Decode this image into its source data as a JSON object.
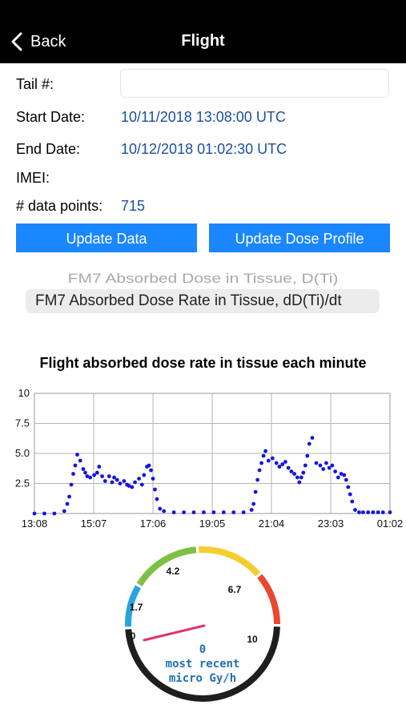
{
  "nav": {
    "back_label": "Back",
    "title": "Flight"
  },
  "fields": {
    "tail_label": "Tail #:",
    "tail_value": "",
    "start_label": "Start Date:",
    "start_value": "10/11/2018 13:08:00 UTC",
    "end_label": "End Date:",
    "end_value": "10/12/2018 01:02:30 UTC",
    "imei_label": "IMEI:",
    "imei_value": "",
    "points_label": "# data points:",
    "points_value": "715"
  },
  "buttons": {
    "update_data": "Update Data",
    "update_dose": "Update Dose Profile"
  },
  "picker": {
    "options": [
      "FM7 Absorbed Dose in Tissue, D(Ti)",
      "FM7 Absorbed Dose Rate in Tissue, dD(Ti)/dt"
    ],
    "selected_index": 1
  },
  "colors": {
    "accent": "#1a86ff",
    "value_text": "#1b4f9c",
    "points": "#1515e0",
    "navbar": "#000000"
  },
  "chart_data": {
    "type": "scatter",
    "title": "Flight absorbed dose rate in tissue each minute",
    "xlabel": "",
    "ylabel": "",
    "x_ticks": [
      "13:08",
      "15:07",
      "17:06",
      "19:05",
      "21:04",
      "23:03",
      "01:02"
    ],
    "y_ticks": [
      "2.5",
      "5.0",
      "7.5",
      "10"
    ],
    "x_range_minutes": [
      0,
      714
    ],
    "ylim": [
      0,
      10
    ],
    "grid": true,
    "series": [
      {
        "name": "",
        "color": "#1515e0",
        "x": [
          0,
          20,
          40,
          60,
          66,
          70,
          74,
          78,
          82,
          86,
          92,
          98,
          102,
          106,
          112,
          120,
          126,
          130,
          136,
          142,
          150,
          156,
          160,
          166,
          172,
          180,
          186,
          190,
          196,
          202,
          210,
          216,
          220,
          226,
          230,
          234,
          238,
          242,
          246,
          252,
          260,
          280,
          300,
          320,
          340,
          360,
          380,
          400,
          420,
          436,
          440,
          444,
          448,
          452,
          456,
          460,
          464,
          470,
          478,
          486,
          492,
          498,
          504,
          510,
          516,
          522,
          528,
          532,
          536,
          540,
          544,
          548,
          552,
          558,
          566,
          574,
          580,
          586,
          592,
          598,
          604,
          610,
          616,
          622,
          626,
          630,
          634,
          638,
          644,
          652,
          660,
          670,
          680,
          690,
          700,
          714
        ],
        "y": [
          0,
          0,
          0,
          0.2,
          0.8,
          1.4,
          2.4,
          3.3,
          4.0,
          4.9,
          4.4,
          3.7,
          3.4,
          3.1,
          3.0,
          3.2,
          3.4,
          3.9,
          3.1,
          2.7,
          3.1,
          2.6,
          3.0,
          2.8,
          2.5,
          2.7,
          2.4,
          2.3,
          2.2,
          2.6,
          2.9,
          2.4,
          3.2,
          3.9,
          4.0,
          3.6,
          2.9,
          2.0,
          1.2,
          0.4,
          0.2,
          0.1,
          0.1,
          0.1,
          0.1,
          0.1,
          0.1,
          0.1,
          0.1,
          0.3,
          0.8,
          1.8,
          2.8,
          3.6,
          4.2,
          4.8,
          5.2,
          4.4,
          4.6,
          4.2,
          3.9,
          4.1,
          4.3,
          3.8,
          3.5,
          3.3,
          3.0,
          2.6,
          3.0,
          3.4,
          4.0,
          4.8,
          5.8,
          6.3,
          4.2,
          4.0,
          3.7,
          4.2,
          3.8,
          4.0,
          3.5,
          3.0,
          3.3,
          3.2,
          2.8,
          2.2,
          1.6,
          1.0,
          0.3,
          0.1,
          0.1,
          0.1,
          0.1,
          0.1,
          0.1,
          0.1
        ]
      }
    ]
  },
  "gauge": {
    "min": 0,
    "max": 10,
    "value": 0,
    "labels": [
      "0",
      "1.7",
      "4.2",
      "6.7",
      "10"
    ],
    "value_text": "0",
    "caption_line1": "most recent",
    "caption_line2": "micro Gy/h",
    "segments": [
      "#2aa3dc",
      "#7dc142",
      "#f2cf2e",
      "#e8482e",
      "#1e1e1e"
    ]
  }
}
